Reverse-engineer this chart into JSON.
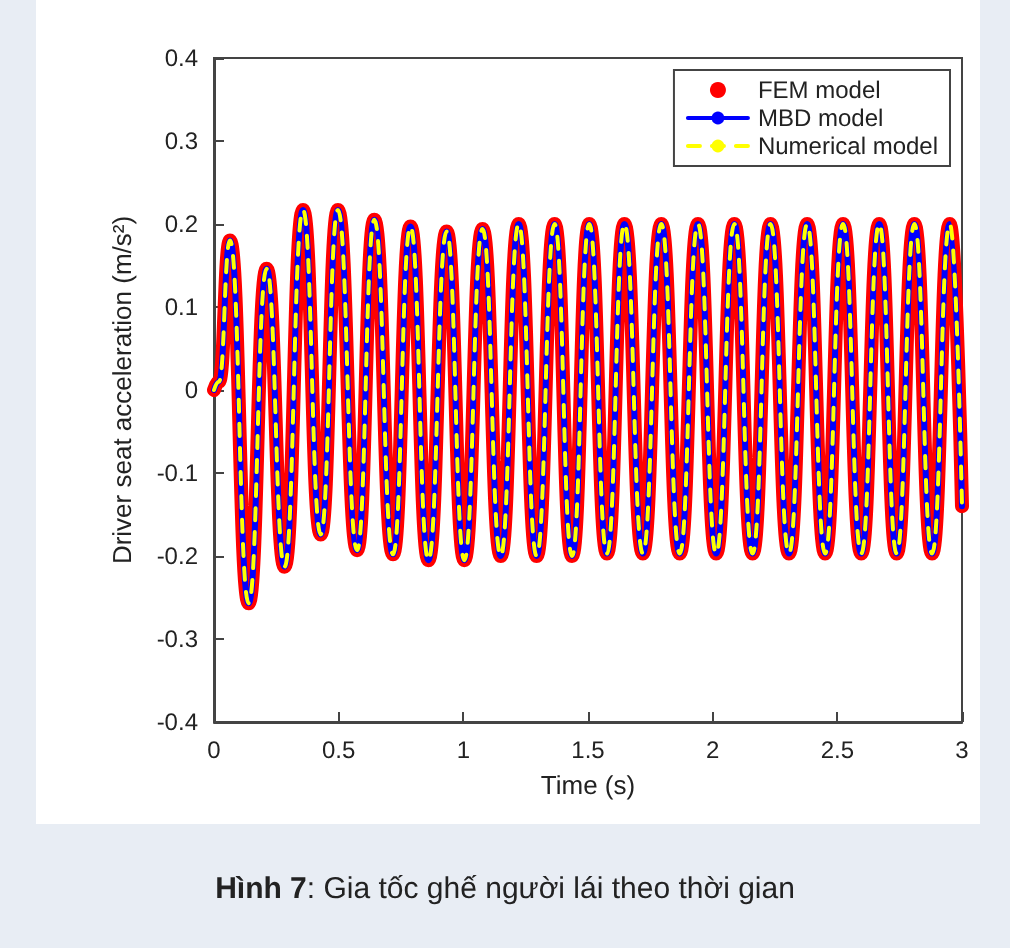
{
  "chart_data": {
    "type": "line",
    "xlabel": "Time (s)",
    "ylabel": "Driver seat acceleration (m/s²)",
    "annotations": [
      "Hình 7: Gia tốc ghế người lái theo thời gian"
    ],
    "x": [
      0,
      0.02,
      0.064,
      0.139,
      0.211,
      0.283,
      0.357,
      0.428,
      0.497,
      0.574,
      0.643,
      0.718,
      0.788,
      0.86,
      0.933,
      1.004,
      1.077,
      1.15,
      1.222,
      1.294,
      1.366,
      1.436,
      1.505,
      1.576,
      1.646,
      1.72,
      1.794,
      1.868,
      1.941,
      2.014,
      2.087,
      2.16,
      2.232,
      2.306,
      2.379,
      2.451,
      2.523,
      2.596,
      2.668,
      2.738,
      2.809,
      2.88,
      2.951,
      3.0
    ],
    "series": [
      {
        "name": "FEM model",
        "color": "#ff0000",
        "marker": "circle",
        "values": [
          0,
          0.01,
          0.18,
          -0.257,
          0.146,
          -0.213,
          0.217,
          -0.174,
          0.217,
          -0.193,
          0.205,
          -0.198,
          0.197,
          -0.205,
          0.191,
          -0.205,
          0.194,
          -0.2,
          0.2,
          -0.2,
          0.2,
          -0.2,
          0.2,
          -0.197,
          0.2,
          -0.197,
          0.2,
          -0.197,
          0.2,
          -0.197,
          0.2,
          -0.197,
          0.2,
          -0.197,
          0.2,
          -0.197,
          0.2,
          -0.197,
          0.2,
          -0.197,
          0.2,
          -0.197,
          0.2,
          -0.14
        ]
      },
      {
        "name": "MBD model",
        "color": "#0000ff",
        "line_style": "solid",
        "values": [
          0,
          0.01,
          0.18,
          -0.257,
          0.146,
          -0.213,
          0.217,
          -0.174,
          0.217,
          -0.193,
          0.205,
          -0.198,
          0.197,
          -0.205,
          0.191,
          -0.205,
          0.194,
          -0.2,
          0.2,
          -0.2,
          0.2,
          -0.2,
          0.2,
          -0.197,
          0.2,
          -0.197,
          0.2,
          -0.197,
          0.2,
          -0.197,
          0.2,
          -0.197,
          0.2,
          -0.197,
          0.2,
          -0.197,
          0.2,
          -0.197,
          0.2,
          -0.197,
          0.2,
          -0.197,
          0.2,
          -0.14
        ]
      },
      {
        "name": "Numerical model",
        "color": "#ffff00",
        "line_style": "dashed",
        "values": [
          0,
          0.01,
          0.18,
          -0.257,
          0.146,
          -0.213,
          0.217,
          -0.174,
          0.217,
          -0.193,
          0.205,
          -0.198,
          0.197,
          -0.205,
          0.191,
          -0.205,
          0.194,
          -0.2,
          0.2,
          -0.2,
          0.2,
          -0.2,
          0.2,
          -0.197,
          0.2,
          -0.197,
          0.2,
          -0.197,
          0.2,
          -0.197,
          0.2,
          -0.197,
          0.2,
          -0.197,
          0.2,
          -0.197,
          0.2,
          -0.197,
          0.2,
          -0.197,
          0.2,
          -0.197,
          0.2,
          -0.14
        ]
      }
    ],
    "xlim": [
      0,
      3
    ],
    "xticks": [
      0,
      0.5,
      1,
      1.5,
      2,
      2.5,
      3
    ],
    "ylim": [
      -0.4,
      0.4
    ],
    "yticks": [
      -0.4,
      -0.3,
      -0.2,
      -0.1,
      0,
      0.1,
      0.2,
      0.3,
      0.4
    ],
    "grid": false,
    "legend": "top right"
  }
}
